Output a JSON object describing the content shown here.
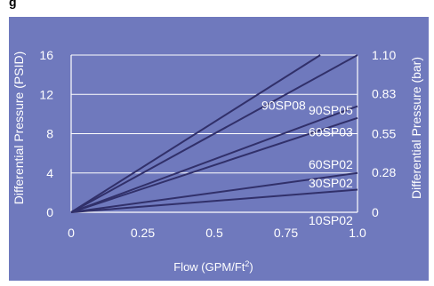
{
  "header": {
    "title_fragment": "g"
  },
  "colors": {
    "background": "#6f79bd",
    "plot_area": "#6f79bd",
    "grid": "#ffffff",
    "axis": "#ffffff",
    "series_line": "#31306a",
    "text": "#ffffff"
  },
  "chart_data": {
    "type": "line",
    "title": "",
    "xlabel": "Flow (GPM/Ft",
    "xlabel_superscript": "2",
    "xlabel_suffix": ")",
    "ylabel_left": "Differential Pressure (PSID)",
    "ylabel_right": "Differential Pressure (bar)",
    "xlim": [
      0,
      1.0
    ],
    "ylim_left": [
      0,
      16
    ],
    "ylim_right": [
      0,
      1.1
    ],
    "x_ticks": [
      {
        "value": 0,
        "label": "0"
      },
      {
        "value": 0.25,
        "label": "0.25"
      },
      {
        "value": 0.5,
        "label": "0.5"
      },
      {
        "value": 0.75,
        "label": "0.75"
      },
      {
        "value": 1.0,
        "label": "1.0"
      }
    ],
    "y_left_ticks": [
      {
        "value": 0,
        "label": "0"
      },
      {
        "value": 4,
        "label": "4"
      },
      {
        "value": 8,
        "label": "8"
      },
      {
        "value": 12,
        "label": "12"
      },
      {
        "value": 16,
        "label": "16"
      }
    ],
    "y_right_ticks": [
      {
        "value": 0,
        "label": "0"
      },
      {
        "value": 0.28,
        "label": "0.28"
      },
      {
        "value": 0.55,
        "label": "0.55"
      },
      {
        "value": 0.83,
        "label": "0.83"
      },
      {
        "value": 1.1,
        "label": "1.10"
      }
    ],
    "grid": true,
    "series": [
      {
        "name": "90SP08",
        "x": [
          0,
          0.87
        ],
        "y": [
          0,
          16
        ]
      },
      {
        "name": "90SP05",
        "x": [
          0,
          1.0
        ],
        "y": [
          0,
          16
        ]
      },
      {
        "name": "60SP03",
        "x": [
          0,
          1.0
        ],
        "y": [
          0,
          10.8
        ]
      },
      {
        "name": "60SP02",
        "x": [
          0,
          1.0
        ],
        "y": [
          0,
          9.6
        ]
      },
      {
        "name": "30SP02",
        "x": [
          0,
          1.0
        ],
        "y": [
          0,
          4
        ]
      },
      {
        "name": "10SP02",
        "x": [
          0,
          1.0
        ],
        "y": [
          0,
          2.3
        ]
      }
    ]
  }
}
